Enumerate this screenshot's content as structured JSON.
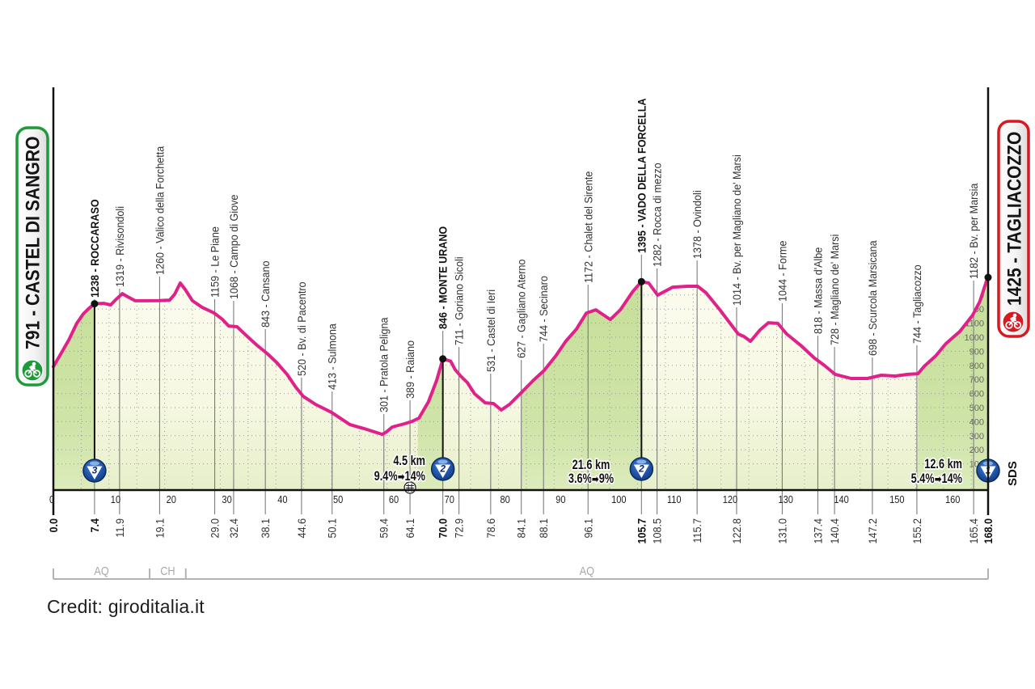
{
  "chart_data": {
    "type": "area",
    "title": "",
    "xlabel": "km",
    "ylabel": "m",
    "xlim": [
      0,
      168
    ],
    "ylim": [
      0,
      1400
    ],
    "grid": true,
    "legend": "none",
    "x_ticks": [
      0,
      10,
      20,
      30,
      40,
      50,
      60,
      70,
      80,
      90,
      100,
      110,
      120,
      130,
      140,
      150,
      160
    ],
    "y_ticks": [
      100,
      200,
      300,
      400,
      500,
      600,
      700,
      800,
      900,
      1000,
      1100,
      1200,
      1300
    ],
    "start": {
      "km": 0.0,
      "km_label": "0.0",
      "elevation": 791,
      "name": "CASTEL DI SANGRO",
      "label": "791 - CASTEL DI SANGRO",
      "icon": "bicycle-icon",
      "color": "#1f9a3b"
    },
    "finish": {
      "km": 168.0,
      "km_label": "168.0",
      "elevation": 1425,
      "name": "TAGLIACOZZO",
      "label": "1425 - TAGLIACOZZO",
      "icon": "bicycle-icon",
      "color": "#d71920"
    },
    "line_color": "#e0218a",
    "arrow_glyph": "➡",
    "sds_label": "SDS",
    "profile": [
      [
        0,
        791
      ],
      [
        1.3,
        879
      ],
      [
        2.8,
        983
      ],
      [
        4.2,
        1098
      ],
      [
        5.4,
        1167
      ],
      [
        6.4,
        1205
      ],
      [
        7.4,
        1238
      ],
      [
        9.0,
        1241
      ],
      [
        10.3,
        1230
      ],
      [
        11.3,
        1270
      ],
      [
        12.4,
        1310
      ],
      [
        13.4,
        1287
      ],
      [
        14.7,
        1259
      ],
      [
        16.6,
        1259
      ],
      [
        19.0,
        1260
      ],
      [
        20.9,
        1264
      ],
      [
        21.8,
        1305
      ],
      [
        22.8,
        1385
      ],
      [
        23.7,
        1339
      ],
      [
        25.0,
        1259
      ],
      [
        26.7,
        1213
      ],
      [
        28.9,
        1172
      ],
      [
        30.4,
        1126
      ],
      [
        31.5,
        1080
      ],
      [
        33.0,
        1075
      ],
      [
        34.7,
        1011
      ],
      [
        36.6,
        943
      ],
      [
        38.4,
        885
      ],
      [
        40.1,
        822
      ],
      [
        42.0,
        736
      ],
      [
        43.5,
        649
      ],
      [
        44.9,
        580
      ],
      [
        47.1,
        523
      ],
      [
        50.0,
        466
      ],
      [
        53.3,
        379
      ],
      [
        55.8,
        351
      ],
      [
        59.1,
        310
      ],
      [
        59.9,
        328
      ],
      [
        60.9,
        362
      ],
      [
        63.1,
        385
      ],
      [
        64.5,
        402
      ],
      [
        65.7,
        425
      ],
      [
        67.4,
        540
      ],
      [
        68.9,
        695
      ],
      [
        70.0,
        846
      ],
      [
        71.4,
        830
      ],
      [
        72.2,
        770
      ],
      [
        73.2,
        724
      ],
      [
        74.4,
        678
      ],
      [
        75.7,
        598
      ],
      [
        77.6,
        534
      ],
      [
        79.1,
        529
      ],
      [
        80.5,
        483
      ],
      [
        82.0,
        523
      ],
      [
        83.9,
        598
      ],
      [
        86.3,
        695
      ],
      [
        88.2,
        764
      ],
      [
        90.3,
        868
      ],
      [
        92.1,
        971
      ],
      [
        94.0,
        1057
      ],
      [
        95.8,
        1172
      ],
      [
        97.5,
        1195
      ],
      [
        99.0,
        1155
      ],
      [
        100.1,
        1126
      ],
      [
        101.9,
        1195
      ],
      [
        104.2,
        1328
      ],
      [
        105.7,
        1395
      ],
      [
        107.0,
        1385
      ],
      [
        108.6,
        1299
      ],
      [
        110.0,
        1328
      ],
      [
        111.3,
        1356
      ],
      [
        113.9,
        1362
      ],
      [
        115.8,
        1362
      ],
      [
        117.3,
        1316
      ],
      [
        119.8,
        1195
      ],
      [
        122.2,
        1069
      ],
      [
        123.1,
        1023
      ],
      [
        124.1,
        1006
      ],
      [
        125.3,
        971
      ],
      [
        127.0,
        1052
      ],
      [
        128.5,
        1103
      ],
      [
        130.2,
        1098
      ],
      [
        131.8,
        1023
      ],
      [
        134.3,
        943
      ],
      [
        136.8,
        851
      ],
      [
        138.6,
        799
      ],
      [
        140.5,
        736
      ],
      [
        143.4,
        707
      ],
      [
        146.3,
        707
      ],
      [
        148.8,
        730
      ],
      [
        151.3,
        724
      ],
      [
        153.6,
        736
      ],
      [
        155.4,
        741
      ],
      [
        156.5,
        793
      ],
      [
        158.6,
        868
      ],
      [
        160.4,
        954
      ],
      [
        162.9,
        1040
      ],
      [
        165.2,
        1155
      ],
      [
        166.5,
        1253
      ],
      [
        167.7,
        1397
      ],
      [
        168.0,
        1425
      ]
    ],
    "waypoints": [
      {
        "km": 7.4,
        "km_label": "7.4",
        "elevation": 1238,
        "label": "1238 - ROCCARASO",
        "highlight": true
      },
      {
        "km": 11.9,
        "km_label": "11.9",
        "elevation": 1319,
        "label": "1319 - Rivisondoli"
      },
      {
        "km": 19.1,
        "km_label": "19.1",
        "elevation": 1260,
        "label": "1260 - Valico della Forchetta"
      },
      {
        "km": 29.0,
        "km_label": "29.0",
        "elevation": 1159,
        "label": "1159 - Le Piane"
      },
      {
        "km": 32.4,
        "km_label": "32.4",
        "elevation": 1068,
        "label": "1068 - Campo di Giove"
      },
      {
        "km": 38.1,
        "km_label": "38.1",
        "elevation": 843,
        "label": "843 - Cansano"
      },
      {
        "km": 44.6,
        "km_label": "44.6",
        "elevation": 520,
        "label": "520 - Bv. di Pacentro"
      },
      {
        "km": 50.1,
        "km_label": "50.1",
        "elevation": 413,
        "label": "413 - Sulmona"
      },
      {
        "km": 59.4,
        "km_label": "59.4",
        "elevation": 301,
        "label": "301 - Pratola Peligna"
      },
      {
        "km": 64.1,
        "km_label": "64.1",
        "elevation": 389,
        "label": "389 - Raiano"
      },
      {
        "km": 70.0,
        "km_label": "70.0",
        "elevation": 846,
        "label": "846 - MONTE URANO",
        "highlight": true
      },
      {
        "km": 72.9,
        "km_label": "72.9",
        "elevation": 711,
        "label": "711 - Goriano Sicoli"
      },
      {
        "km": 78.6,
        "km_label": "78.6",
        "elevation": 531,
        "label": "531 - Castel di Ieri"
      },
      {
        "km": 84.1,
        "km_label": "84.1",
        "elevation": 627,
        "label": "627 - Gagliano Aterno"
      },
      {
        "km": 88.1,
        "km_label": "88.1",
        "elevation": 744,
        "label": "744 - Secinaro"
      },
      {
        "km": 96.1,
        "km_label": "96.1",
        "elevation": 1172,
        "label": "1172 - Chalet del Sirente"
      },
      {
        "km": 105.7,
        "km_label": "105.7",
        "elevation": 1395,
        "label": "1395 - VADO DELLA FORCELLA",
        "highlight": true
      },
      {
        "km": 108.5,
        "km_label": "108.5",
        "elevation": 1282,
        "label": "1282 - Rocca di mezzo"
      },
      {
        "km": 115.7,
        "km_label": "115.7",
        "elevation": 1378,
        "label": "1378 - Ovindoli"
      },
      {
        "km": 122.8,
        "km_label": "122.8",
        "elevation": 1014,
        "label": "1014 - Bv. per Magliano de' Marsi"
      },
      {
        "km": 131.0,
        "km_label": "131.0",
        "elevation": 1044,
        "label": "1044 - Forme"
      },
      {
        "km": 137.4,
        "km_label": "137.4",
        "elevation": 818,
        "label": "818 - Massa d'Albe"
      },
      {
        "km": 140.4,
        "km_label": "140.4",
        "elevation": 728,
        "label": "728 - Magliano de' Marsi"
      },
      {
        "km": 147.2,
        "km_label": "147.2",
        "elevation": 698,
        "label": "698 - Scurcola Marsicana"
      },
      {
        "km": 155.2,
        "km_label": "155.2",
        "elevation": 744,
        "label": "744 - Tagliacozzo"
      },
      {
        "km": 165.4,
        "km_label": "165.4",
        "elevation": 1182,
        "label": "1182 - Bv. per Marsia"
      }
    ],
    "climbs": [
      {
        "category": "3",
        "name": "ROCCARASO",
        "summit_km": 7.4,
        "summit_elevation": 1238,
        "start_km": 0.0
      },
      {
        "category": "2",
        "name": "MONTE URANO",
        "summit_km": 70.0,
        "summit_elevation": 846,
        "start_km": 65.5,
        "length": "4.5 km",
        "gradient_avg": "9.4%",
        "gradient_max": "14%"
      },
      {
        "category": "2",
        "name": "VADO DELLA FORCELLA",
        "summit_km": 105.7,
        "summit_elevation": 1395,
        "start_km": 84.1,
        "length": "21.6 km",
        "gradient_avg": "3.6%",
        "gradient_max": "9%"
      },
      {
        "category": "1",
        "name": "TAGLIACOZZO",
        "summit_km": 168.0,
        "summit_elevation": 1425,
        "start_km": 155.4,
        "length": "12.6 km",
        "gradient_avg": "5.4%",
        "gradient_max": "14%"
      }
    ],
    "sprint": {
      "km": 64.1,
      "icon": "intermediate-sprint-icon"
    },
    "regions": [
      {
        "label": "AQ",
        "from_km": 0.0,
        "to_km": 17.3
      },
      {
        "label": "CH",
        "from_km": 17.3,
        "to_km": 23.8
      },
      {
        "label": "AQ",
        "from_km": 23.8,
        "to_km": 168.0
      }
    ]
  },
  "credit": "Credit: giroditalia.it"
}
